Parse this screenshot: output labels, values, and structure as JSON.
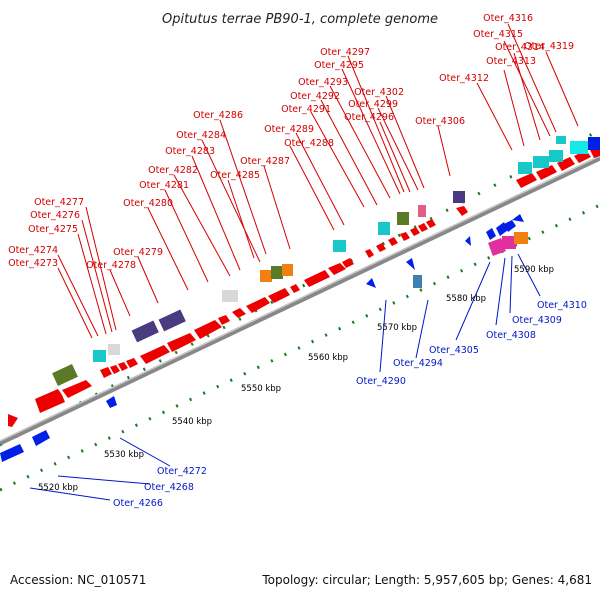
{
  "title": "Opitutus terrae PB90-1, complete genome",
  "accession": "Accession: NC_010571",
  "topology": "Topology: circular; Length: 5,957,605 bp; Genes: 4,681",
  "colors": {
    "forward_label": "#d40000",
    "reverse_label": "#0018c8",
    "backbone": "#8a8a8a",
    "tick": "#1a7a1a"
  },
  "scale_labels": [
    "5520 kbp",
    "5530 kbp",
    "5540 kbp",
    "5550 kbp",
    "5560 kbp",
    "5570 kbp",
    "5580 kbp",
    "5590 kbp"
  ],
  "forward_genes": [
    "Oter_4273",
    "Oter_4274",
    "Oter_4275",
    "Oter_4276",
    "Oter_4277",
    "Oter_4278",
    "Oter_4279",
    "Oter_4280",
    "Oter_4281",
    "Oter_4282",
    "Oter_4283",
    "Oter_4284",
    "Oter_4285",
    "Oter_4286",
    "Oter_4287",
    "Oter_4288",
    "Oter_4289",
    "Oter_4291",
    "Oter_4292",
    "Oter_4293",
    "Oter_4295",
    "Oter_4296",
    "Oter_4297",
    "Oter_4299",
    "Oter_4302",
    "Oter_4306",
    "Oter_4312",
    "Oter_4313",
    "Oter_4314",
    "Oter_4315",
    "Oter_4316",
    "Oter_4319"
  ],
  "reverse_genes": [
    "Oter_4266",
    "Oter_4268",
    "Oter_4272",
    "Oter_4290",
    "Oter_4294",
    "Oter_4305",
    "Oter_4308",
    "Oter_4309",
    "Oter_4310"
  ]
}
